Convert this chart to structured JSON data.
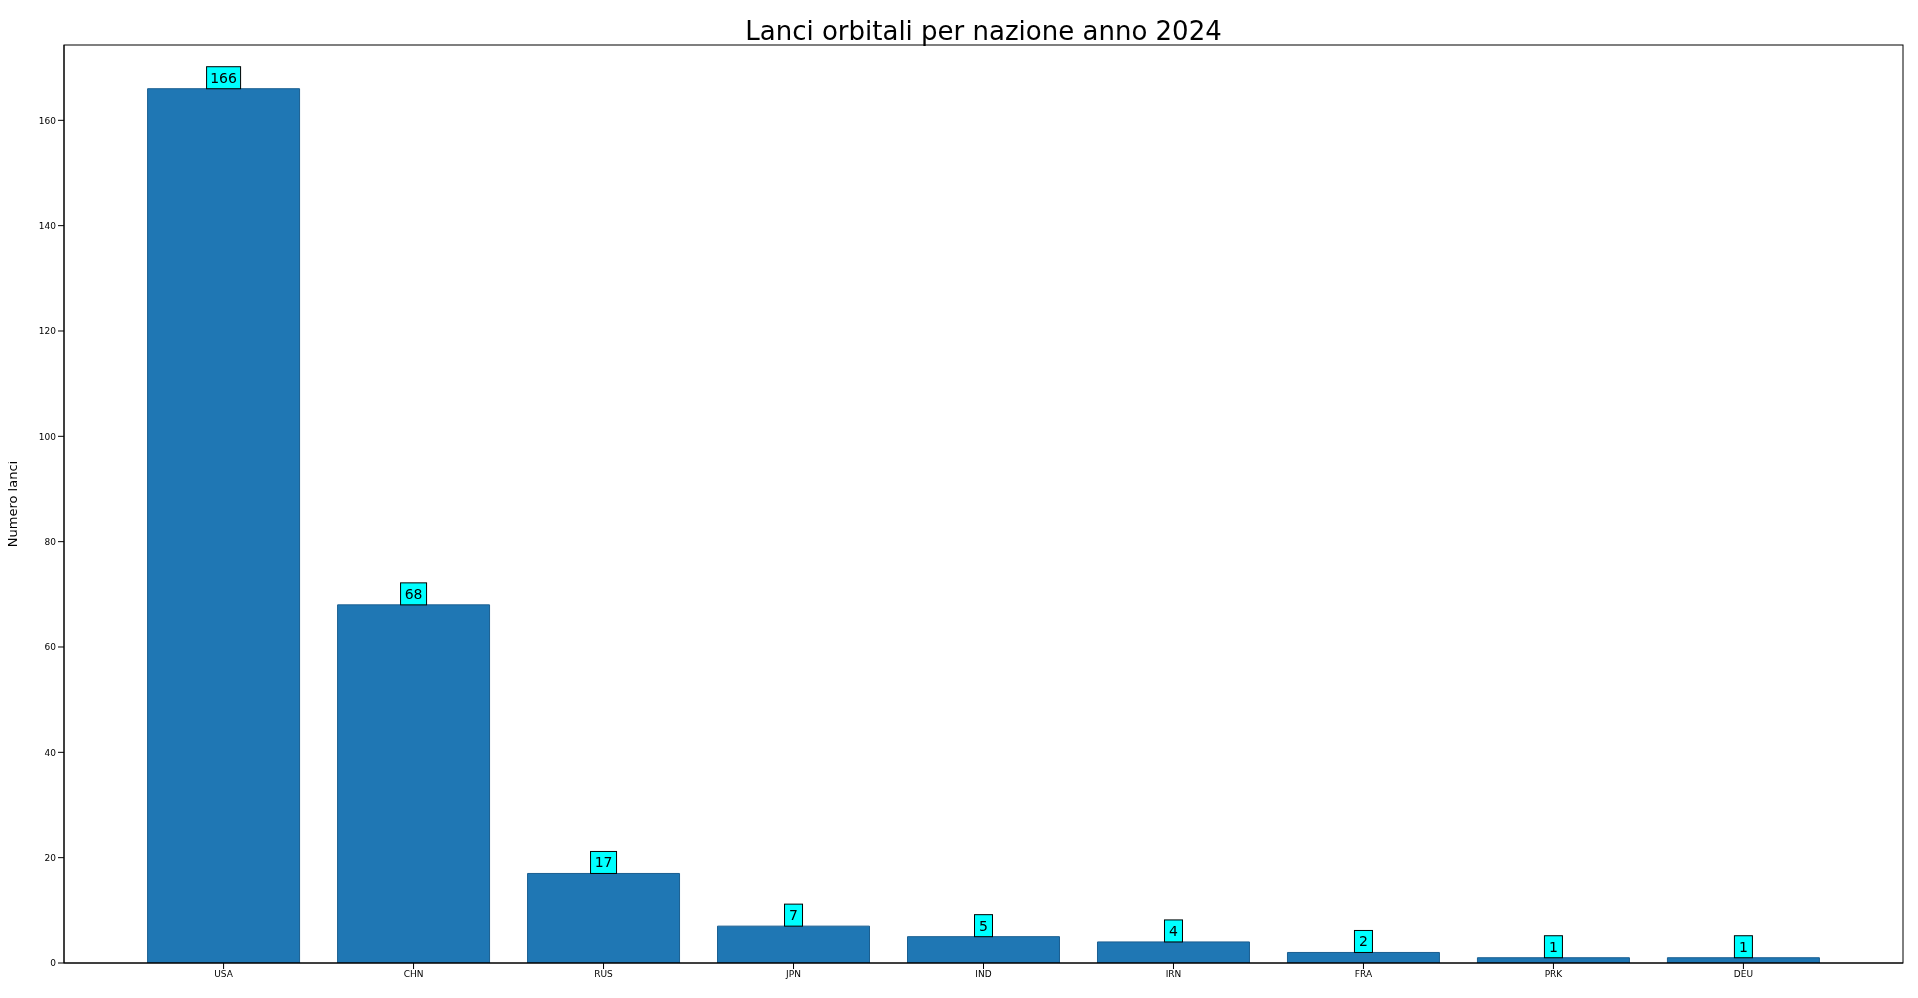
{
  "chart_data": {
    "type": "bar",
    "title": "Lanci orbitali per nazione anno 2024",
    "ylabel": "Numero lanci",
    "categories": [
      "USA",
      "CHN",
      "RUS",
      "JPN",
      "IND",
      "IRN",
      "FRA",
      "PRK",
      "DEU"
    ],
    "values": [
      166,
      68,
      17,
      7,
      5,
      4,
      2,
      1,
      1
    ],
    "color": "#1f77b4",
    "ylim": [
      0,
      174.3
    ],
    "yticks": [
      0,
      20,
      40,
      60,
      80,
      100,
      120,
      140,
      160
    ],
    "grid": false,
    "data_labels": true
  }
}
